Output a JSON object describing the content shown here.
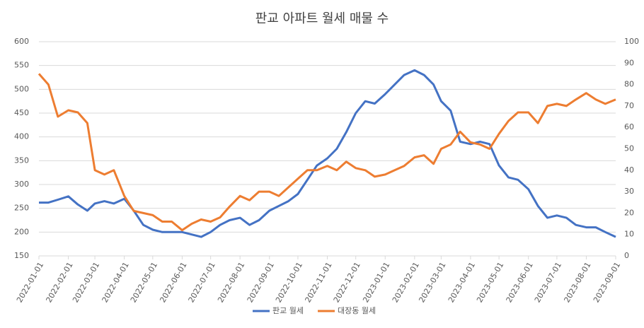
{
  "chart_data": {
    "type": "line",
    "title": "판교 아파트 월세 매물 수",
    "x": [
      "2022-01-01",
      "2022-01-11",
      "2022-01-21",
      "2022-02-01",
      "2022-02-11",
      "2022-02-21",
      "2022-03-01",
      "2022-03-11",
      "2022-03-21",
      "2022-04-01",
      "2022-04-11",
      "2022-04-21",
      "2022-05-01",
      "2022-05-11",
      "2022-05-21",
      "2022-06-01",
      "2022-06-11",
      "2022-06-21",
      "2022-07-01",
      "2022-07-11",
      "2022-07-21",
      "2022-08-01",
      "2022-08-11",
      "2022-08-21",
      "2022-09-01",
      "2022-09-11",
      "2022-09-21",
      "2022-10-01",
      "2022-10-11",
      "2022-10-21",
      "2022-11-01",
      "2022-11-11",
      "2022-11-21",
      "2022-12-01",
      "2022-12-11",
      "2022-12-21",
      "2023-01-01",
      "2023-01-11",
      "2023-01-21",
      "2023-02-01",
      "2023-02-11",
      "2023-02-21",
      "2023-03-01",
      "2023-03-11",
      "2023-03-21",
      "2023-04-01",
      "2023-04-11",
      "2023-04-21",
      "2023-05-01",
      "2023-05-11",
      "2023-05-21",
      "2023-06-01",
      "2023-06-11",
      "2023-06-21",
      "2023-07-01",
      "2023-07-11",
      "2023-07-21",
      "2023-08-01",
      "2023-08-11",
      "2023-08-21",
      "2023-09-01"
    ],
    "series": [
      {
        "name": "판교 월세",
        "color": "#4472c4",
        "axis": "y",
        "values": [
          262,
          262,
          268,
          275,
          258,
          245,
          260,
          265,
          260,
          270,
          245,
          215,
          205,
          200,
          200,
          200,
          195,
          190,
          200,
          215,
          225,
          230,
          215,
          225,
          245,
          255,
          265,
          280,
          310,
          340,
          355,
          375,
          410,
          450,
          475,
          470,
          490,
          510,
          530,
          540,
          530,
          510,
          475,
          455,
          390,
          385,
          390,
          385,
          340,
          315,
          310,
          290,
          255,
          230,
          235,
          230,
          215,
          210,
          210,
          200,
          190
        ]
      },
      {
        "name": "대장동 월세",
        "color": "#ed7d31",
        "axis": "y2",
        "values": [
          85,
          80,
          65,
          68,
          67,
          62,
          40,
          38,
          40,
          28,
          21,
          20,
          19,
          16,
          16,
          12,
          15,
          17,
          16,
          18,
          23,
          28,
          26,
          30,
          30,
          28,
          32,
          36,
          40,
          40,
          42,
          40,
          44,
          41,
          40,
          37,
          38,
          40,
          42,
          46,
          47,
          43,
          50,
          52,
          58,
          53,
          52,
          50,
          57,
          63,
          67,
          67,
          62,
          70,
          71,
          70,
          73,
          76,
          73,
          71,
          73
        ]
      }
    ],
    "ylim": [
      150,
      600
    ],
    "yticks": [
      150,
      200,
      250,
      300,
      350,
      400,
      450,
      500,
      550,
      600
    ],
    "y2lim": [
      0,
      100
    ],
    "y2ticks": [
      0,
      10,
      20,
      30,
      40,
      50,
      60,
      70,
      80,
      90,
      100
    ],
    "xlim": [
      "2022-01-01",
      "2023-09-01"
    ],
    "xticks": [
      "2022-01-01",
      "2022-02-01",
      "2022-03-01",
      "2022-04-01",
      "2022-05-01",
      "2022-06-01",
      "2022-07-01",
      "2022-08-01",
      "2022-09-01",
      "2022-10-01",
      "2022-11-01",
      "2022-12-01",
      "2023-01-01",
      "2023-02-01",
      "2023-03-01",
      "2023-04-01",
      "2023-05-01",
      "2023-06-01",
      "2023-07-01",
      "2023-08-01",
      "2023-09-01"
    ],
    "grid": true,
    "legend": "bottom"
  }
}
